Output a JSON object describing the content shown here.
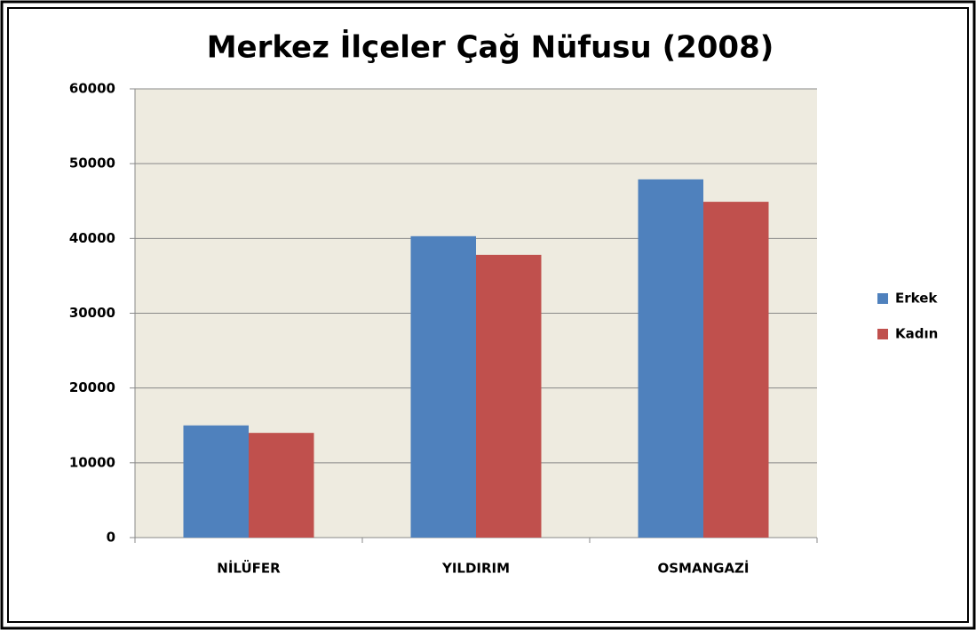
{
  "chart_data": {
    "type": "bar",
    "title": "Merkez İlçeler Çağ Nüfusu (2008)",
    "categories": [
      "NİLÜFER",
      "YILDIRIM",
      "OSMANGAZİ"
    ],
    "series": [
      {
        "name": "Erkek",
        "color": "#4f81bd",
        "values": [
          15000,
          40300,
          47900
        ]
      },
      {
        "name": "Kadın",
        "color": "#c0504d",
        "values": [
          14000,
          37800,
          44900
        ]
      }
    ],
    "ylim": [
      0,
      60000
    ],
    "yticks": [
      0,
      10000,
      20000,
      30000,
      40000,
      50000,
      60000
    ],
    "grid": true,
    "legend": "right"
  }
}
